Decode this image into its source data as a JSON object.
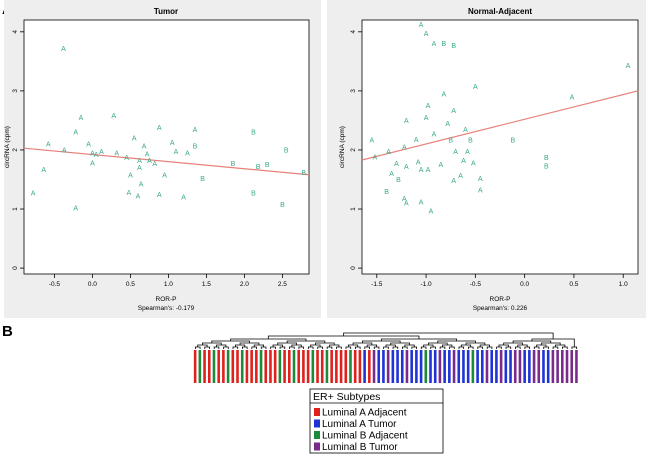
{
  "panel_a_label": "A",
  "panel_b_label": "B",
  "colors": {
    "point": "#3aa88a",
    "fit_line": "#e8807a",
    "panel_bg": "#eeeeee",
    "luminal_a_adjacent": "#e0201c",
    "luminal_a_tumor": "#1f33d6",
    "luminal_b_adjacent": "#1d8a3a",
    "luminal_b_tumor": "#7a2a8a"
  },
  "chart_data": [
    {
      "type": "scatter",
      "title": "Tumor",
      "xlabel": "ROR-P",
      "ylabel": "circRNA (cpm)",
      "annotation": "Spearman's: -0.179",
      "xlim": [
        -0.9,
        2.85
      ],
      "ylim": [
        -0.1,
        4.2
      ],
      "xticks": [
        -0.5,
        0.0,
        0.5,
        1.0,
        1.5,
        2.0,
        2.5
      ],
      "xtick_labels": [
        "-0.5",
        "0.0",
        "0.5",
        "1.0",
        "1.5",
        "2.0",
        "2.5"
      ],
      "yticks": [
        0,
        1,
        2,
        3,
        4
      ],
      "ytick_labels": [
        "0",
        "1",
        "2",
        "3",
        "4"
      ],
      "fit_line": [
        [
          -0.9,
          2.03
        ],
        [
          2.85,
          1.58
        ]
      ],
      "points": [
        {
          "x": -0.38,
          "y": 3.72,
          "label": "A"
        },
        {
          "x": -0.78,
          "y": 1.27,
          "label": "A"
        },
        {
          "x": -0.64,
          "y": 1.67,
          "label": "A"
        },
        {
          "x": -0.58,
          "y": 2.1,
          "label": "A"
        },
        {
          "x": -0.37,
          "y": 2.0,
          "label": "A"
        },
        {
          "x": -0.22,
          "y": 2.3,
          "label": "A"
        },
        {
          "x": -0.15,
          "y": 2.55,
          "label": "A"
        },
        {
          "x": -0.22,
          "y": 1.02,
          "label": "A"
        },
        {
          "x": -0.05,
          "y": 2.1,
          "label": "A"
        },
        {
          "x": 0.0,
          "y": 1.95,
          "label": "A"
        },
        {
          "x": 0.05,
          "y": 1.92,
          "label": "A"
        },
        {
          "x": 0.12,
          "y": 1.97,
          "label": "A"
        },
        {
          "x": 0.0,
          "y": 1.78,
          "label": "A"
        },
        {
          "x": 0.28,
          "y": 2.58,
          "label": "A"
        },
        {
          "x": 0.32,
          "y": 1.95,
          "label": "A"
        },
        {
          "x": 0.45,
          "y": 1.87,
          "label": "A"
        },
        {
          "x": 0.55,
          "y": 2.2,
          "label": "A"
        },
        {
          "x": 0.5,
          "y": 1.58,
          "label": "A"
        },
        {
          "x": 0.48,
          "y": 1.28,
          "label": "A"
        },
        {
          "x": 0.62,
          "y": 1.82,
          "label": "A"
        },
        {
          "x": 0.62,
          "y": 1.7,
          "label": "A"
        },
        {
          "x": 0.64,
          "y": 1.42,
          "label": "A"
        },
        {
          "x": 0.6,
          "y": 1.22,
          "label": "A"
        },
        {
          "x": 0.68,
          "y": 2.07,
          "label": "A"
        },
        {
          "x": 0.72,
          "y": 1.93,
          "label": "A"
        },
        {
          "x": 0.75,
          "y": 1.82,
          "label": "A"
        },
        {
          "x": 0.82,
          "y": 1.77,
          "label": "A"
        },
        {
          "x": 0.88,
          "y": 2.38,
          "label": "A"
        },
        {
          "x": 0.88,
          "y": 1.25,
          "label": "A"
        },
        {
          "x": 0.95,
          "y": 1.58,
          "label": "A"
        },
        {
          "x": 1.05,
          "y": 2.13,
          "label": "A"
        },
        {
          "x": 1.1,
          "y": 1.97,
          "label": "A"
        },
        {
          "x": 1.2,
          "y": 1.2,
          "label": "A"
        },
        {
          "x": 1.25,
          "y": 1.95,
          "label": "A"
        },
        {
          "x": 1.35,
          "y": 2.35,
          "label": "A"
        },
        {
          "x": 1.35,
          "y": 2.07,
          "label": "B"
        },
        {
          "x": 1.45,
          "y": 1.52,
          "label": "B"
        },
        {
          "x": 1.85,
          "y": 1.77,
          "label": "B"
        },
        {
          "x": 2.12,
          "y": 2.3,
          "label": "B"
        },
        {
          "x": 2.18,
          "y": 1.72,
          "label": "B"
        },
        {
          "x": 2.3,
          "y": 1.75,
          "label": "B"
        },
        {
          "x": 2.12,
          "y": 1.27,
          "label": "B"
        },
        {
          "x": 2.55,
          "y": 2.0,
          "label": "B"
        },
        {
          "x": 2.5,
          "y": 1.08,
          "label": "B"
        },
        {
          "x": 2.78,
          "y": 1.62,
          "label": "B"
        }
      ]
    },
    {
      "type": "scatter",
      "title": "Normal-Adjacent",
      "xlabel": "ROR-P",
      "ylabel": "circRNA (cpm)",
      "annotation": "Spearman's: 0.226",
      "xlim": [
        -1.65,
        1.15
      ],
      "ylim": [
        -0.1,
        4.2
      ],
      "xticks": [
        -1.5,
        -1.0,
        -0.5,
        0.0,
        0.5,
        1.0
      ],
      "xtick_labels": [
        "-1.5",
        "-1.0",
        "-0.5",
        "0.0",
        "0.5",
        "1.0"
      ],
      "yticks": [
        0,
        1,
        2,
        3,
        4
      ],
      "ytick_labels": [
        "0",
        "1",
        "2",
        "3",
        "4"
      ],
      "fit_line": [
        [
          -1.65,
          1.83
        ],
        [
          1.15,
          3.0
        ]
      ],
      "points": [
        {
          "x": -1.05,
          "y": 4.12,
          "label": "A"
        },
        {
          "x": -1.0,
          "y": 3.97,
          "label": "A"
        },
        {
          "x": -0.92,
          "y": 3.8,
          "label": "A"
        },
        {
          "x": -0.82,
          "y": 3.8,
          "label": "B"
        },
        {
          "x": -0.72,
          "y": 3.77,
          "label": "B"
        },
        {
          "x": 1.05,
          "y": 3.43,
          "label": "A"
        },
        {
          "x": 0.48,
          "y": 2.9,
          "label": "A"
        },
        {
          "x": -0.5,
          "y": 3.07,
          "label": "A"
        },
        {
          "x": -0.82,
          "y": 2.95,
          "label": "A"
        },
        {
          "x": -0.98,
          "y": 2.75,
          "label": "A"
        },
        {
          "x": -0.72,
          "y": 2.67,
          "label": "A"
        },
        {
          "x": -1.0,
          "y": 2.55,
          "label": "A"
        },
        {
          "x": -1.2,
          "y": 2.5,
          "label": "A"
        },
        {
          "x": -0.78,
          "y": 2.45,
          "label": "A"
        },
        {
          "x": -0.6,
          "y": 2.35,
          "label": "A"
        },
        {
          "x": -0.92,
          "y": 2.27,
          "label": "A"
        },
        {
          "x": -1.1,
          "y": 2.18,
          "label": "A"
        },
        {
          "x": -0.75,
          "y": 2.17,
          "label": "B"
        },
        {
          "x": -0.55,
          "y": 2.17,
          "label": "B"
        },
        {
          "x": -1.22,
          "y": 2.05,
          "label": "A"
        },
        {
          "x": -1.55,
          "y": 2.17,
          "label": "A"
        },
        {
          "x": -1.52,
          "y": 1.88,
          "label": "A"
        },
        {
          "x": -1.38,
          "y": 1.97,
          "label": "A"
        },
        {
          "x": -1.3,
          "y": 1.77,
          "label": "A"
        },
        {
          "x": -1.35,
          "y": 1.6,
          "label": "A"
        },
        {
          "x": -1.28,
          "y": 1.5,
          "label": "B"
        },
        {
          "x": -1.2,
          "y": 1.72,
          "label": "A"
        },
        {
          "x": -1.08,
          "y": 1.8,
          "label": "A"
        },
        {
          "x": -1.05,
          "y": 1.67,
          "label": "A"
        },
        {
          "x": -0.98,
          "y": 1.67,
          "label": "A"
        },
        {
          "x": -0.85,
          "y": 1.75,
          "label": "A"
        },
        {
          "x": -0.7,
          "y": 1.97,
          "label": "A"
        },
        {
          "x": -0.62,
          "y": 1.82,
          "label": "A"
        },
        {
          "x": -0.58,
          "y": 1.97,
          "label": "A"
        },
        {
          "x": -0.52,
          "y": 1.78,
          "label": "A"
        },
        {
          "x": -0.65,
          "y": 1.57,
          "label": "A"
        },
        {
          "x": -0.72,
          "y": 1.48,
          "label": "A"
        },
        {
          "x": -0.45,
          "y": 1.52,
          "label": "A"
        },
        {
          "x": -0.45,
          "y": 1.32,
          "label": "A"
        },
        {
          "x": -1.4,
          "y": 1.3,
          "label": "B"
        },
        {
          "x": -1.22,
          "y": 1.18,
          "label": "A"
        },
        {
          "x": -1.2,
          "y": 1.1,
          "label": "A"
        },
        {
          "x": -1.05,
          "y": 1.12,
          "label": "A"
        },
        {
          "x": -0.95,
          "y": 0.97,
          "label": "A"
        },
        {
          "x": -0.12,
          "y": 2.17,
          "label": "B"
        },
        {
          "x": 0.22,
          "y": 1.87,
          "label": "B"
        },
        {
          "x": 0.22,
          "y": 1.73,
          "label": "B"
        }
      ]
    },
    {
      "type": "dendrogram_heatmap",
      "title": "ER+ Subtypes",
      "legend": [
        {
          "label": "Luminal A Adjacent",
          "color": "#e0201c"
        },
        {
          "label": "Luminal A Tumor",
          "color": "#1f33d6"
        },
        {
          "label": "Luminal B Adjacent",
          "color": "#1d8a3a"
        },
        {
          "label": "Luminal B Tumor",
          "color": "#7a2a8a"
        }
      ],
      "sample_groups": [
        "LAA",
        "LBA",
        "LAA",
        "LAA",
        "LBA",
        "LAA",
        "LAA",
        "LBA",
        "LAA",
        "LAA",
        "LBA",
        "LAA",
        "LAA",
        "LAA",
        "LBA",
        "LAA",
        "LAA",
        "LAA",
        "LBA",
        "LAA",
        "LAA",
        "LBA",
        "LAA",
        "LAA",
        "LAA",
        "LBA",
        "LAA",
        "LAA",
        "LBA",
        "LAA",
        "LAA",
        "LAA",
        "LAA",
        "LBA",
        "LAA",
        "LAA",
        "LAT",
        "LAA",
        "LBT",
        "LAT",
        "LAT",
        "LBT",
        "LAT",
        "LAT",
        "LAT",
        "LBT",
        "LAT",
        "LAT",
        "LAT",
        "LBA",
        "LAT",
        "LAT",
        "LBT",
        "LAT",
        "LAT",
        "LBT",
        "LAT",
        "LAT",
        "LAT",
        "LBA",
        "LAT",
        "LAT",
        "LBT",
        "LAT",
        "LAT",
        "LBT",
        "LAT",
        "LAT",
        "LBT",
        "LBT",
        "LAT",
        "LAT",
        "LBT",
        "LBT",
        "LAT",
        "LAT",
        "LBT",
        "LBT",
        "LBT",
        "LBT",
        "LBT",
        "LBT"
      ]
    }
  ]
}
